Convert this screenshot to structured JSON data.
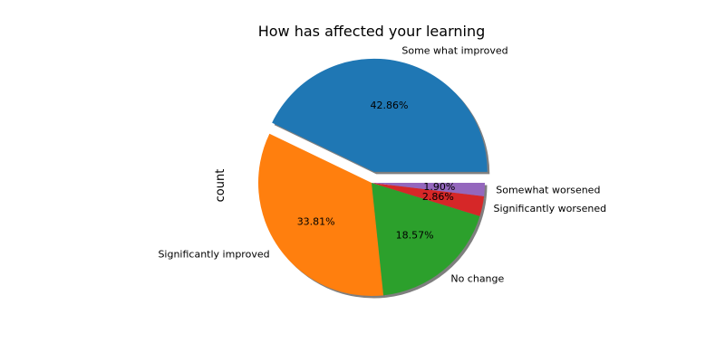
{
  "chart_data": {
    "type": "pie",
    "title": "How has affected your learning",
    "ylabel": "count",
    "start_angle_deg": 0,
    "direction": "counterclockwise",
    "shadow": true,
    "grid": false,
    "legend": "none",
    "slices": [
      {
        "label": "Some what improved",
        "percent": 42.86,
        "pct_label": "42.86%",
        "color": "#1f77b4",
        "exploded": true
      },
      {
        "label": "Significantly improved",
        "percent": 33.81,
        "pct_label": "33.81%",
        "color": "#ff7f0e",
        "exploded": false
      },
      {
        "label": "No change",
        "percent": 18.57,
        "pct_label": "18.57%",
        "color": "#2ca02c",
        "exploded": false
      },
      {
        "label": "Significantly worsened",
        "percent": 2.86,
        "pct_label": "2.86%",
        "color": "#d62728",
        "exploded": false
      },
      {
        "label": "Somewhat worsened",
        "percent": 1.9,
        "pct_label": "1.90%",
        "color": "#9467bd",
        "exploded": false
      }
    ]
  }
}
